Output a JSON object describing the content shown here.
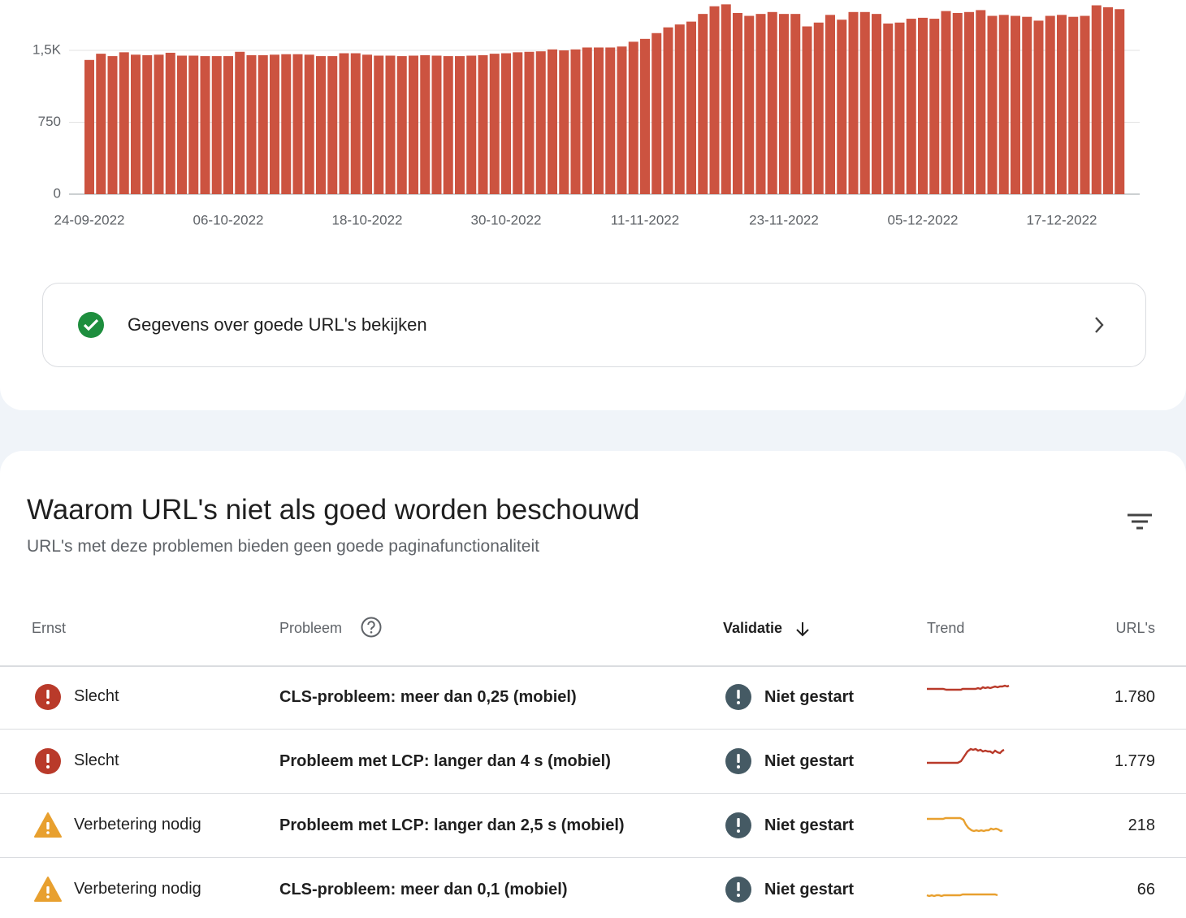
{
  "chart_data": {
    "type": "bar",
    "color": "#cc5340",
    "grid": true,
    "categories": [
      "24-09-2022",
      null,
      null,
      null,
      null,
      null,
      null,
      null,
      null,
      null,
      null,
      null,
      "06-10-2022",
      null,
      null,
      null,
      null,
      null,
      null,
      null,
      null,
      null,
      null,
      null,
      "18-10-2022",
      null,
      null,
      null,
      null,
      null,
      null,
      null,
      null,
      null,
      null,
      null,
      "30-10-2022",
      null,
      null,
      null,
      null,
      null,
      null,
      null,
      null,
      null,
      null,
      null,
      "11-11-2022",
      null,
      null,
      null,
      null,
      null,
      null,
      null,
      null,
      null,
      null,
      null,
      "23-11-2022",
      null,
      null,
      null,
      null,
      null,
      null,
      null,
      null,
      null,
      null,
      null,
      "05-12-2022",
      null,
      null,
      null,
      null,
      null,
      null,
      null,
      null,
      null,
      null,
      null,
      "17-12-2022",
      null,
      null,
      null,
      null,
      null
    ],
    "values": [
      1400,
      1465,
      1440,
      1480,
      1455,
      1450,
      1455,
      1475,
      1445,
      1445,
      1440,
      1440,
      1440,
      1485,
      1450,
      1450,
      1455,
      1460,
      1460,
      1455,
      1440,
      1440,
      1470,
      1470,
      1455,
      1445,
      1445,
      1440,
      1445,
      1450,
      1445,
      1440,
      1440,
      1445,
      1450,
      1465,
      1470,
      1480,
      1485,
      1490,
      1510,
      1500,
      1510,
      1530,
      1530,
      1530,
      1540,
      1590,
      1620,
      1680,
      1740,
      1770,
      1800,
      1880,
      1960,
      1980,
      1890,
      1860,
      1880,
      1900,
      1880,
      1880,
      1750,
      1790,
      1870,
      1820,
      1900,
      1900,
      1880,
      1780,
      1790,
      1830,
      1840,
      1830,
      1910,
      1890,
      1900,
      1920,
      1860,
      1870,
      1860,
      1850,
      1810,
      1860,
      1870,
      1850,
      1860,
      1970,
      1950,
      1930
    ],
    "ylim": [
      0,
      2000
    ],
    "yticks": [
      0,
      750,
      {
        "value": 1500,
        "label": "1,5K"
      }
    ]
  },
  "good_urls_link": "Gegevens over goede URL's bekijken",
  "issues": {
    "title": "Waarom URL's niet als goed worden beschouwd",
    "subtitle": "URL's met deze problemen bieden geen goede paginafunctionaliteit",
    "columns": [
      "Ernst",
      "Probleem",
      "Validatie",
      "Trend",
      "URL's"
    ],
    "rows": [
      [
        "Slecht",
        "CLS-probleem: meer dan 0,25 (mobiel)",
        "Niet gestart",
        "1.780"
      ],
      [
        "Slecht",
        "Probleem met LCP: langer dan 4 s (mobiel)",
        "Niet gestart",
        "1.779"
      ],
      [
        "Verbetering nodig",
        "Probleem met LCP: langer dan 2,5 s (mobiel)",
        "Niet gestart",
        "218"
      ],
      [
        "Verbetering nodig",
        "CLS-probleem: meer dan 0,1 (mobiel)",
        "Niet gestart",
        "66"
      ]
    ]
  }
}
